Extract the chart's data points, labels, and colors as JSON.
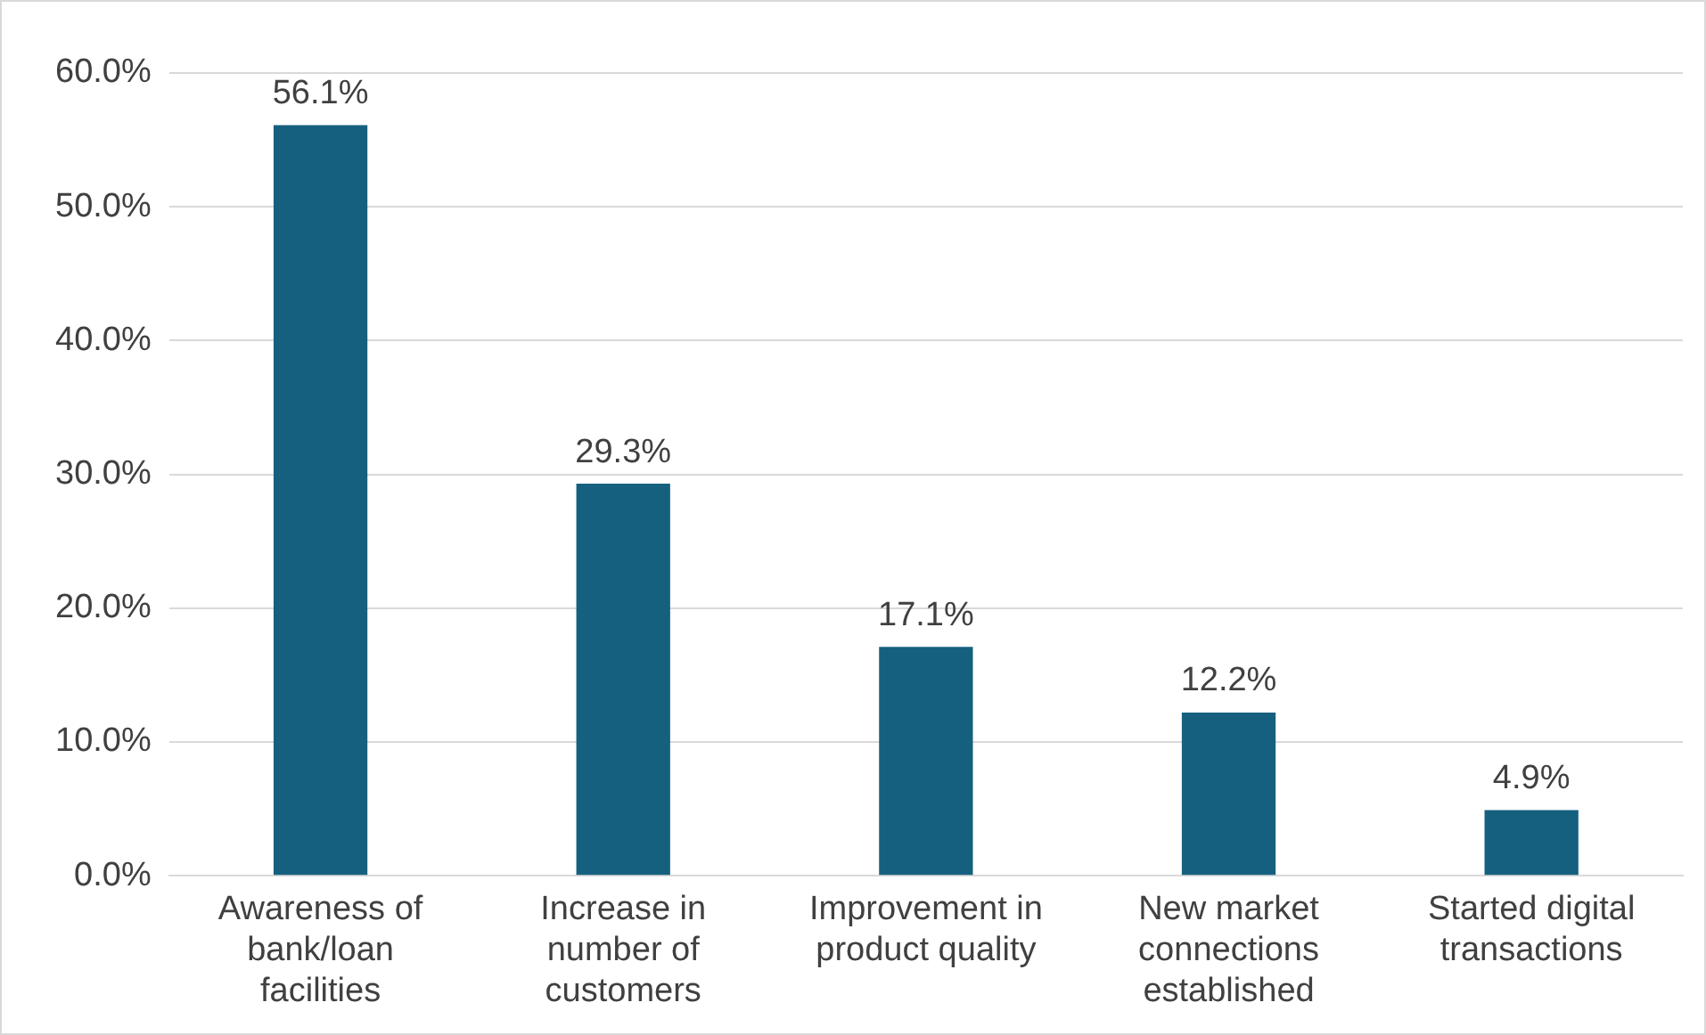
{
  "chart_data": {
    "type": "bar",
    "categories": [
      "Awareness of bank/loan facilities",
      "Increase in number of customers",
      "Improvement in product quality",
      "New market connections established",
      "Started digital transactions"
    ],
    "values": [
      56.1,
      29.3,
      17.1,
      12.2,
      4.9
    ],
    "value_labels": [
      "56.1%",
      "29.3%",
      "17.1%",
      "12.2%",
      "4.9%"
    ],
    "color": "#16607f",
    "ylim": [
      0,
      60
    ],
    "yticks": [
      {
        "value": 0,
        "label": "0.0%"
      },
      {
        "value": 10,
        "label": "10.0%"
      },
      {
        "value": 20,
        "label": "20.0%"
      },
      {
        "value": 30,
        "label": "30.0%"
      },
      {
        "value": 40,
        "label": "40.0%"
      },
      {
        "value": 50,
        "label": "50.0%"
      },
      {
        "value": 60,
        "label": "60.0%"
      }
    ],
    "grid": "y",
    "legend": false
  }
}
